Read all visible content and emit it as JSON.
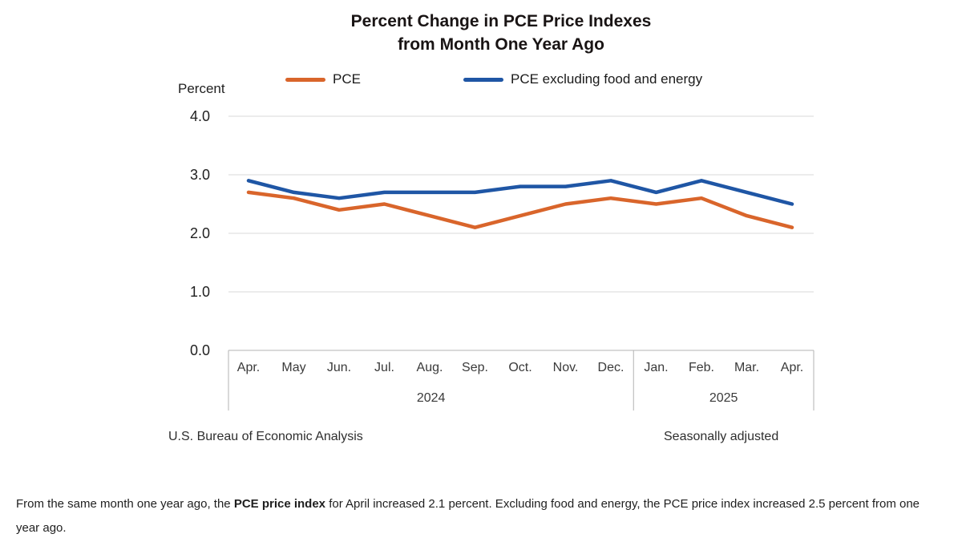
{
  "title": {
    "line1": "Percent Change in PCE Price Indexes",
    "line2": "from Month One Year Ago"
  },
  "axis": {
    "unit_label": "Percent",
    "y_ticks": [
      "4.0",
      "3.0",
      "2.0",
      "1.0",
      "0.0"
    ]
  },
  "footer": {
    "source": "U.S. Bureau of Economic Analysis",
    "note": "Seasonally adjusted"
  },
  "caption": {
    "prefix": "From the same month one year ago, the ",
    "bold": "PCE price index",
    "suffix": " for April increased 2.1 percent. Excluding food and energy, the PCE price index increased 2.5 percent from one year ago."
  },
  "chart_data": {
    "type": "line",
    "title": "Percent Change in PCE Price Indexes from Month One Year Ago",
    "xlabel": "",
    "ylabel": "Percent",
    "ylim": [
      0.0,
      4.0
    ],
    "y_tick_step": 1.0,
    "grid": true,
    "legend_position": "top",
    "categories": [
      "Apr.",
      "May",
      "Jun.",
      "Jul.",
      "Aug.",
      "Sep.",
      "Oct.",
      "Nov.",
      "Dec.",
      "Jan.",
      "Feb.",
      "Mar.",
      "Apr."
    ],
    "year_groups": [
      {
        "label": "2024",
        "months": 9
      },
      {
        "label": "2025",
        "months": 4
      }
    ],
    "series": [
      {
        "name": "PCE",
        "color": "#D9652B",
        "values": [
          2.7,
          2.6,
          2.4,
          2.5,
          2.3,
          2.1,
          2.3,
          2.5,
          2.6,
          2.5,
          2.6,
          2.3,
          2.1
        ]
      },
      {
        "name": "PCE excluding food and energy",
        "color": "#1F56A5",
        "values": [
          2.9,
          2.7,
          2.6,
          2.7,
          2.7,
          2.7,
          2.8,
          2.8,
          2.9,
          2.7,
          2.9,
          2.7,
          2.5
        ]
      }
    ]
  }
}
